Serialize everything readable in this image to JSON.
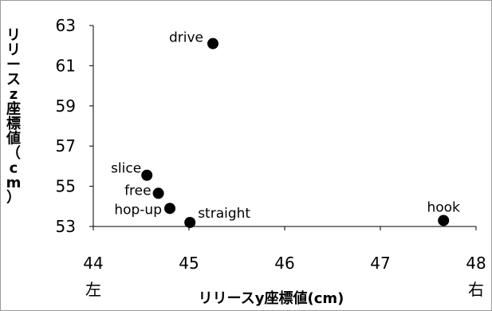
{
  "chart_data": {
    "type": "scatter",
    "title": "",
    "xlabel": "リリースy座標値(cm)",
    "ylabel": "リリースz座標値（cm）",
    "xlim": [
      44,
      48
    ],
    "ylim": [
      53,
      63
    ],
    "x_ticks": [
      "44",
      "45",
      "46",
      "47",
      "48"
    ],
    "y_ticks": [
      "53",
      "55",
      "57",
      "59",
      "61",
      "63"
    ],
    "x_left_label": "左",
    "x_right_label": "右",
    "grid": false,
    "marker_color": "#000000",
    "points": [
      {
        "label": "drive",
        "x": 45.25,
        "y": 62.1
      },
      {
        "label": "slice",
        "x": 44.56,
        "y": 55.55
      },
      {
        "label": "free",
        "x": 44.68,
        "y": 54.65
      },
      {
        "label": "hop-up",
        "x": 44.8,
        "y": 53.9
      },
      {
        "label": "straight",
        "x": 45.01,
        "y": 53.2
      },
      {
        "label": "hook",
        "x": 47.66,
        "y": 53.3
      }
    ]
  }
}
